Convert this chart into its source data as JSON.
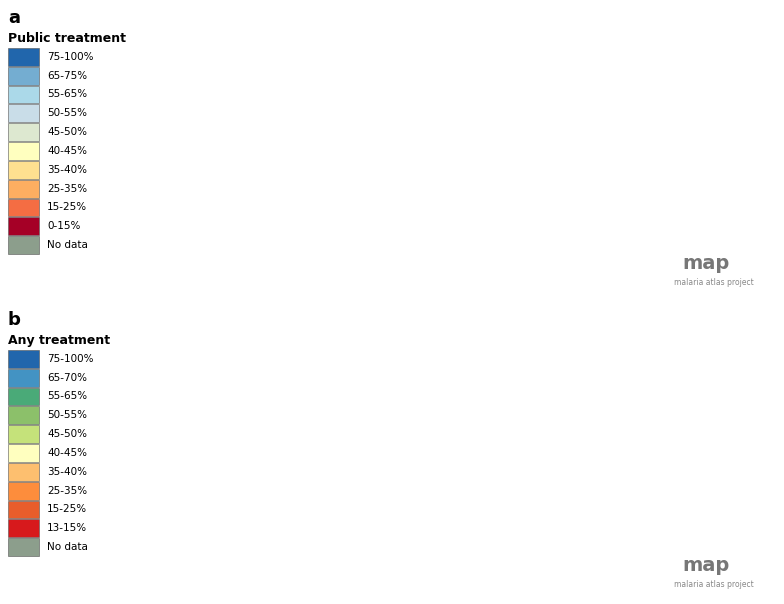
{
  "figure_width": 7.84,
  "figure_height": 6.04,
  "dpi": 100,
  "background_color": "#ffffff",
  "panel_a": {
    "label": "a",
    "title": "Public treatment",
    "legend_entries": [
      {
        "label": "75-100%",
        "color": "#2166ac"
      },
      {
        "label": "65-75%",
        "color": "#74add1"
      },
      {
        "label": "55-65%",
        "color": "#abd9e9"
      },
      {
        "label": "50-55%",
        "color": "#c9dde8"
      },
      {
        "label": "45-50%",
        "color": "#dde8d0"
      },
      {
        "label": "40-45%",
        "color": "#ffffbf"
      },
      {
        "label": "35-40%",
        "color": "#fee090"
      },
      {
        "label": "25-35%",
        "color": "#fdae61"
      },
      {
        "label": "15-25%",
        "color": "#f46d43"
      },
      {
        "label": "0-15%",
        "color": "#a50026"
      },
      {
        "label": "No data",
        "color": "#8c9e8c"
      }
    ],
    "country_colors": {
      "Mexico": "#dde8d0",
      "Guatemala": "#f46d43",
      "Belize": "#fdae61",
      "Honduras": "#fdae61",
      "El Salvador": "#fdae61",
      "Nicaragua": "#fdae61",
      "Costa Rica": "#fdae61",
      "Panama": "#fdae61",
      "Cuba": "#2166ac",
      "Haiti": "#a50026",
      "Dominican Republic": "#fdae61",
      "Jamaica": "#74add1",
      "Colombia": "#fdae61",
      "Venezuela": "#dde8d0",
      "Guyana": "#dde8d0",
      "Suriname": "#dde8d0",
      "French Guiana": "#dde8d0",
      "Ecuador": "#74add1",
      "Peru": "#a50026",
      "Bolivia": "#a50026",
      "Brazil": "#a50026",
      "Paraguay": "#f46d43",
      "Chile": "#dde8d0",
      "Argentina": "#dde8d0",
      "Morocco": "#dde8d0",
      "Algeria": "#8c9e8c",
      "Tunisia": "#8c9e8c",
      "Libya": "#8c9e8c",
      "Egypt": "#f46d43",
      "Sudan": "#fdae61",
      "South Sudan": "#fee090",
      "Ethiopia": "#a50026",
      "Eritrea": "#f46d43",
      "Djibouti": "#fdae61",
      "Somalia": "#a50026",
      "Kenya": "#fdae61",
      "Uganda": "#fee090",
      "Tanzania": "#fdae61",
      "Rwanda": "#fdae61",
      "Burundi": "#fee090",
      "Democratic Republic of the Congo": "#fdae61",
      "Republic of Congo": "#fdae61",
      "Central African Republic": "#fee090",
      "Cameroon": "#fdae61",
      "Nigeria": "#fee090",
      "Niger": "#fee090",
      "Mali": "#fdae61",
      "Burkina Faso": "#fdae61",
      "Senegal": "#fdae61",
      "Gambia": "#fdae61",
      "Guinea-Bissau": "#fdae61",
      "Guinea": "#fdae61",
      "Sierra Leone": "#fdae61",
      "Liberia": "#fdae61",
      "Ivory Coast": "#fee090",
      "Ghana": "#fee090",
      "Togo": "#fdae61",
      "Benin": "#fdae61",
      "Chad": "#8c9e8c",
      "Mauritania": "#fdae61",
      "Angola": "#fdae61",
      "Zambia": "#fee090",
      "Zimbabwe": "#fdae61",
      "Mozambique": "#fdae61",
      "Malawi": "#f46d43",
      "Madagascar": "#fdae61",
      "Namibia": "#dde8d0",
      "Botswana": "#dde8d0",
      "South Africa": "#dde8d0",
      "Swaziland": "#fdae61",
      "Lesotho": "#dde8d0",
      "Equatorial Guinea": "#fdae61",
      "Gabon": "#fdae61",
      "Sao Tome and Principe": "#fdae61",
      "Comoros": "#fdae61",
      "Turkey": "#dde8d0",
      "Syria": "#f46d43",
      "Lebanon": "#f46d43",
      "Israel": "#dde8d0",
      "Jordan": "#f46d43",
      "Iraq": "#f46d43",
      "Iran": "#dde8d0",
      "Afghanistan": "#a50026",
      "Pakistan": "#f46d43",
      "India": "#a50026",
      "Nepal": "#f46d43",
      "Bhutan": "#fee090",
      "Bangladesh": "#f46d43",
      "Sri Lanka": "#f46d43",
      "Myanmar": "#f46d43",
      "Thailand": "#fee090",
      "Laos": "#fdae61",
      "Vietnam": "#f46d43",
      "Cambodia": "#fdae61",
      "Malaysia": "#dde8d0",
      "Indonesia": "#74add1",
      "Philippines": "#2166ac",
      "Papua New Guinea": "#dde8d0",
      "China": "#dde8d0",
      "North Korea": "#dde8d0",
      "South Korea": "#dde8d0",
      "Mongolia": "#dde8d0",
      "Kazakhstan": "#dde8d0",
      "Uzbekistan": "#dde8d0",
      "Turkmenistan": "#dde8d0",
      "Tajikistan": "#f46d43",
      "Kyrgyzstan": "#dde8d0",
      "Azerbaijan": "#dde8d0",
      "Armenia": "#dde8d0",
      "Georgia": "#dde8d0",
      "Saudi Arabia": "#a50026",
      "Yemen": "#a50026",
      "Oman": "#f46d43",
      "UAE": "#dde8d0",
      "Qatar": "#dde8d0",
      "Bahrain": "#dde8d0",
      "Kuwait": "#dde8d0",
      "Timor-Leste": "#fdae61",
      "Solomon Islands": "#fdae61",
      "Vanuatu": "#fdae61"
    }
  },
  "panel_b": {
    "label": "b",
    "title": "Any treatment",
    "legend_entries": [
      {
        "label": "75-100%",
        "color": "#2166ac"
      },
      {
        "label": "65-70%",
        "color": "#4393c3"
      },
      {
        "label": "55-65%",
        "color": "#4aaa78"
      },
      {
        "label": "50-55%",
        "color": "#8cc06a"
      },
      {
        "label": "45-50%",
        "color": "#c5e27a"
      },
      {
        "label": "40-45%",
        "color": "#ffffbf"
      },
      {
        "label": "35-40%",
        "color": "#fdbf6f"
      },
      {
        "label": "25-35%",
        "color": "#fd8d3c"
      },
      {
        "label": "15-25%",
        "color": "#e85d2b"
      },
      {
        "label": "13-15%",
        "color": "#d7191c"
      },
      {
        "label": "No data",
        "color": "#8c9e8c"
      }
    ],
    "country_colors": {
      "Mexico": "#4aaa78",
      "Guatemala": "#fd8d3c",
      "Belize": "#fdbf6f",
      "Honduras": "#fdbf6f",
      "El Salvador": "#fdbf6f",
      "Nicaragua": "#c5e27a",
      "Costa Rica": "#fdbf6f",
      "Panama": "#fdbf6f",
      "Cuba": "#2166ac",
      "Haiti": "#d7191c",
      "Dominican Republic": "#fdbf6f",
      "Jamaica": "#4393c3",
      "Colombia": "#c5e27a",
      "Venezuela": "#4aaa78",
      "Guyana": "#4aaa78",
      "Suriname": "#4aaa78",
      "French Guiana": "#4aaa78",
      "Ecuador": "#4393c3",
      "Peru": "#2166ac",
      "Bolivia": "#2166ac",
      "Brazil": "#2166ac",
      "Paraguay": "#2166ac",
      "Chile": "#2166ac",
      "Argentina": "#2166ac",
      "Morocco": "#4aaa78",
      "Algeria": "#8c9e8c",
      "Tunisia": "#8c9e8c",
      "Libya": "#8c9e8c",
      "Egypt": "#2166ac",
      "Sudan": "#fd8d3c",
      "South Sudan": "#c5e27a",
      "Ethiopia": "#fd8d3c",
      "Eritrea": "#fd8d3c",
      "Djibouti": "#fdbf6f",
      "Somalia": "#fd8d3c",
      "Kenya": "#4aaa78",
      "Uganda": "#c5e27a",
      "Tanzania": "#4aaa78",
      "Rwanda": "#4aaa78",
      "Burundi": "#c5e27a",
      "Democratic Republic of the Congo": "#c5e27a",
      "Republic of Congo": "#c5e27a",
      "Central African Republic": "#c5e27a",
      "Cameroon": "#c5e27a",
      "Nigeria": "#fd8d3c",
      "Niger": "#c5e27a",
      "Mali": "#fd8d3c",
      "Burkina Faso": "#c5e27a",
      "Senegal": "#fdbf6f",
      "Gambia": "#fdbf6f",
      "Guinea-Bissau": "#fdbf6f",
      "Guinea": "#fdbf6f",
      "Sierra Leone": "#c5e27a",
      "Liberia": "#c5e27a",
      "Ivory Coast": "#c5e27a",
      "Ghana": "#c5e27a",
      "Togo": "#c5e27a",
      "Benin": "#c5e27a",
      "Chad": "#8c9e8c",
      "Mauritania": "#fd8d3c",
      "Angola": "#4aaa78",
      "Zambia": "#4aaa78",
      "Zimbabwe": "#4aaa78",
      "Mozambique": "#4aaa78",
      "Malawi": "#4aaa78",
      "Madagascar": "#c5e27a",
      "Namibia": "#4393c3",
      "Botswana": "#2166ac",
      "South Africa": "#2166ac",
      "Swaziland": "#4aaa78",
      "Lesotho": "#2166ac",
      "Equatorial Guinea": "#4aaa78",
      "Gabon": "#4aaa78",
      "Sao Tome and Principe": "#4aaa78",
      "Comoros": "#4aaa78",
      "Turkey": "#2166ac",
      "Syria": "#fdbf6f",
      "Lebanon": "#fdbf6f",
      "Israel": "#2166ac",
      "Jordan": "#2166ac",
      "Iraq": "#2166ac",
      "Iran": "#2166ac",
      "Afghanistan": "#2166ac",
      "Pakistan": "#2166ac",
      "India": "#2166ac",
      "Nepal": "#2166ac",
      "Bhutan": "#4aaa78",
      "Bangladesh": "#2166ac",
      "Sri Lanka": "#2166ac",
      "Myanmar": "#2166ac",
      "Thailand": "#4393c3",
      "Laos": "#4aaa78",
      "Vietnam": "#4393c3",
      "Cambodia": "#4393c3",
      "Malaysia": "#2166ac",
      "Indonesia": "#2166ac",
      "Philippines": "#c5e27a",
      "Papua New Guinea": "#4aaa78",
      "China": "#2166ac",
      "North Korea": "#4393c3",
      "South Korea": "#2166ac",
      "Mongolia": "#4393c3",
      "Kazakhstan": "#2166ac",
      "Uzbekistan": "#2166ac",
      "Turkmenistan": "#4393c3",
      "Tajikistan": "#2166ac",
      "Kyrgyzstan": "#4393c3",
      "Azerbaijan": "#4393c3",
      "Armenia": "#4393c3",
      "Georgia": "#4393c3",
      "Saudi Arabia": "#2166ac",
      "Yemen": "#fd8d3c",
      "Oman": "#2166ac",
      "UAE": "#2166ac",
      "Qatar": "#2166ac",
      "Bahrain": "#2166ac",
      "Kuwait": "#2166ac",
      "Timor-Leste": "#4aaa78",
      "Solomon Islands": "#4aaa78",
      "Vanuatu": "#4aaa78"
    }
  },
  "non_endemic_color": "#c8d0c0",
  "ocean_color": "#ffffff",
  "map_logo_text": "map",
  "map_subtitle": "malaria atlas project",
  "label_fontsize": 13,
  "legend_title_fontsize": 9,
  "legend_entry_fontsize": 7.5
}
